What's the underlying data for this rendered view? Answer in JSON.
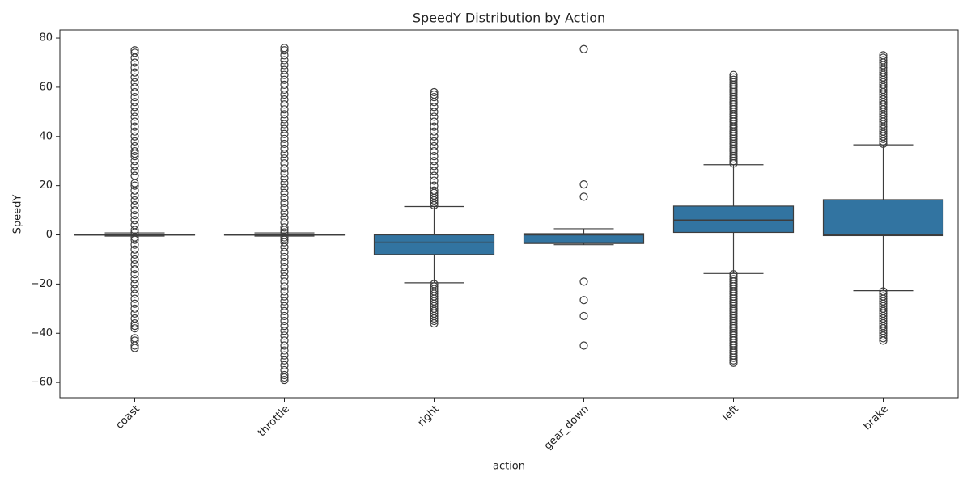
{
  "chart_data": {
    "type": "box",
    "title": "SpeedY Distribution by Action",
    "xlabel": "action",
    "ylabel": "SpeedY",
    "categories": [
      "coast",
      "throttle",
      "right",
      "gear_down",
      "left",
      "brake"
    ],
    "color": "#3274a1",
    "ylim": [
      -66.2,
      83.3
    ],
    "yticks": [
      {
        "value": -60,
        "label": "−60"
      },
      {
        "value": -40,
        "label": "−40"
      },
      {
        "value": -20,
        "label": "−20"
      },
      0,
      20,
      40,
      60,
      80
    ],
    "boxes": [
      {
        "whislo": -0.5,
        "q1": -0.1,
        "median": 0,
        "q3": 0.3,
        "whishi": 0.8,
        "fliers": [
          -46,
          -45,
          -43,
          -42,
          -38,
          -37,
          -36,
          -34,
          -32,
          -30,
          -28,
          -26,
          -24,
          -22,
          -20,
          -18,
          -16,
          -14,
          -12,
          -10,
          -8,
          -6,
          -4,
          -2,
          -1,
          1,
          2,
          4,
          6,
          8,
          10,
          12,
          14,
          16,
          18,
          20,
          21,
          24,
          26,
          28,
          30,
          32,
          33,
          34,
          36,
          38,
          40,
          42,
          44,
          46,
          48,
          50,
          52,
          54,
          56,
          58,
          60,
          62,
          64,
          66,
          68,
          70,
          72,
          74,
          75
        ]
      },
      {
        "whislo": -0.5,
        "q1": -0.1,
        "median": 0,
        "q3": 0.3,
        "whishi": 0.8,
        "fliers": [
          -59,
          -58,
          -57,
          -55,
          -53,
          -51,
          -49,
          -47,
          -45,
          -43,
          -41,
          -39,
          -37,
          -35,
          -33,
          -31,
          -29,
          -27,
          -25,
          -23,
          -21,
          -19,
          -17,
          -15,
          -13,
          -11,
          -9,
          -7,
          -5,
          -3,
          -2,
          -1,
          1,
          2,
          3,
          5,
          7,
          9,
          11,
          13,
          15,
          17,
          19,
          21,
          23,
          25,
          27,
          29,
          31,
          33,
          35,
          37,
          39,
          41,
          43,
          45,
          47,
          49,
          51,
          53,
          55,
          57,
          59,
          61,
          63,
          65,
          67,
          69,
          71,
          73,
          75,
          76
        ]
      },
      {
        "whislo": -19.5,
        "q1": -8,
        "median": -3,
        "q3": 0,
        "whishi": 11.5,
        "fliers": [
          -36,
          -35,
          -34,
          -33,
          -32,
          -31,
          -30,
          -29,
          -28,
          -27,
          -26,
          -25,
          -24,
          -23,
          -22,
          -21,
          -20,
          12,
          13,
          14,
          15,
          16,
          17,
          18,
          20,
          22,
          24,
          26,
          28,
          30,
          32,
          34,
          36,
          38,
          40,
          42,
          44,
          46,
          48,
          50,
          52,
          54,
          56,
          57,
          58
        ]
      },
      {
        "whislo": -4,
        "q1": -3.5,
        "median": 0,
        "q3": 0.5,
        "whishi": 2.5,
        "fliers": [
          -45,
          -33,
          -26.5,
          -19,
          15.5,
          20.5,
          75.5
        ]
      },
      {
        "whislo": -15.7,
        "q1": 1,
        "median": 6,
        "q3": 11.7,
        "whishi": 28.5,
        "fliers": [
          -52,
          -51,
          -50,
          -49,
          -48,
          -47,
          -46,
          -45,
          -44,
          -43,
          -42,
          -41,
          -40,
          -39,
          -38,
          -37,
          -36,
          -35,
          -34,
          -33,
          -32,
          -31,
          -30,
          -29,
          -28,
          -27,
          -26,
          -25,
          -24,
          -23,
          -22,
          -21,
          -20,
          -19,
          -18,
          -17,
          -16,
          29,
          30,
          31,
          32,
          33,
          34,
          35,
          36,
          37,
          38,
          39,
          40,
          41,
          42,
          43,
          44,
          45,
          46,
          47,
          48,
          49,
          50,
          51,
          52,
          53,
          54,
          55,
          56,
          57,
          58,
          59,
          60,
          61,
          62,
          63,
          64,
          65
        ]
      },
      {
        "whislo": -22.7,
        "q1": -0.3,
        "median": 0.1,
        "q3": 14.3,
        "whishi": 36.6,
        "fliers": [
          -43,
          -42,
          -41,
          -40,
          -39,
          -38,
          -37,
          -36,
          -35,
          -34,
          -33,
          -32,
          -31,
          -30,
          -29,
          -28,
          -27,
          -26,
          -25,
          -24,
          -23,
          37,
          38,
          39,
          40,
          41,
          42,
          43,
          44,
          45,
          46,
          47,
          48,
          49,
          50,
          51,
          52,
          53,
          54,
          55,
          56,
          57,
          58,
          59,
          60,
          61,
          62,
          63,
          64,
          65,
          66,
          67,
          68,
          69,
          70,
          71,
          72,
          73
        ]
      }
    ]
  }
}
